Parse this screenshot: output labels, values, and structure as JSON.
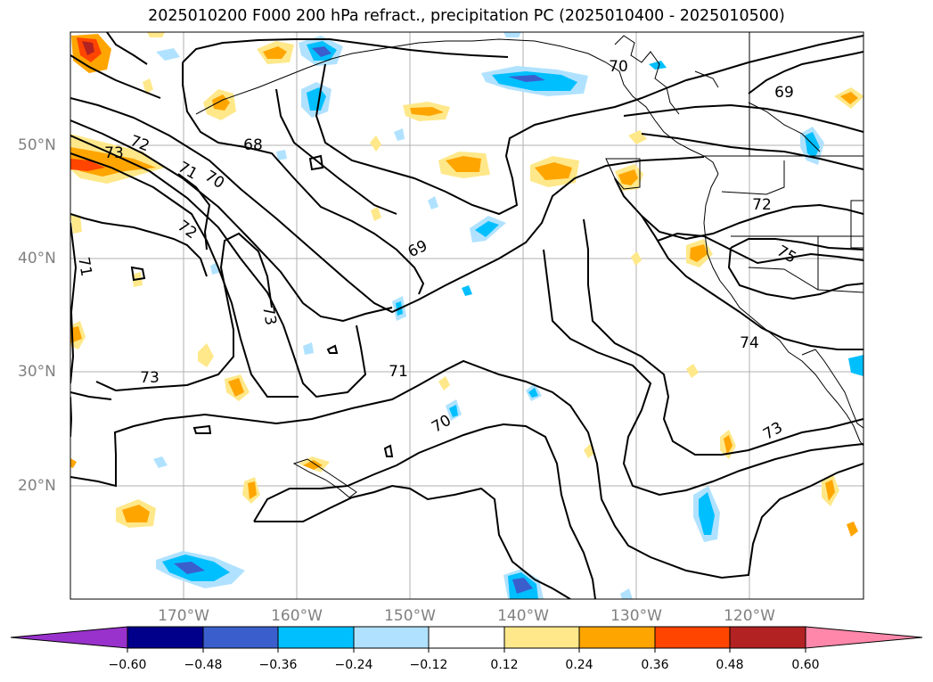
{
  "title": "2025010200 F000 200 hPa refract., precipitation PC (2025010400 - 2025010500)",
  "axes": {
    "lon_labels": [
      "170°W",
      "160°W",
      "150°W",
      "140°W",
      "130°W",
      "120°W"
    ],
    "lat_labels": [
      "50°N",
      "40°N",
      "30°N",
      "20°N"
    ],
    "lon_range": [
      -180,
      -110
    ],
    "lat_range": [
      10,
      60
    ],
    "grid": true
  },
  "contour_labels": [
    "73",
    "72",
    "71",
    "70",
    "68",
    "72",
    "71",
    "69",
    "70",
    "69",
    "72",
    "75",
    "73",
    "74",
    "73",
    "71",
    "70",
    "73"
  ],
  "colorbar": {
    "ticks": [
      "−0.60",
      "−0.48",
      "−0.36",
      "−0.24",
      "−0.12",
      "0.12",
      "0.24",
      "0.36",
      "0.48",
      "0.60"
    ],
    "colors": [
      "#9932cc",
      "#00008b",
      "#3a5fcd",
      "#00bfff",
      "#b0e2ff",
      "#ffffff",
      "#ffe88a",
      "#ffa500",
      "#ff4500",
      "#b22222",
      "#ff88aa"
    ],
    "extend": "both"
  }
}
